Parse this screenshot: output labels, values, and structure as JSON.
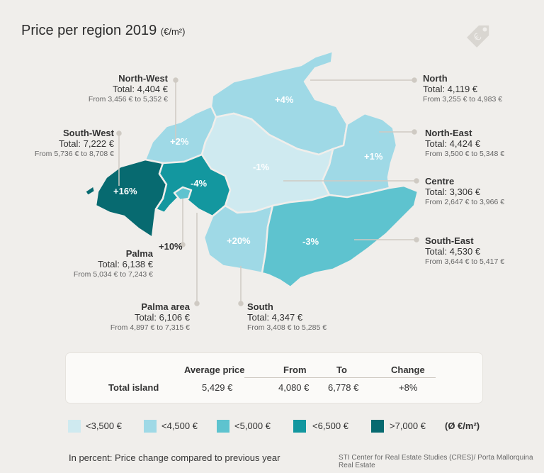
{
  "title": "Price per region 2019",
  "title_unit": "(€/m²)",
  "colors": {
    "c1": "#cfeaf0",
    "c2": "#9fd9e6",
    "c3": "#5ec3cf",
    "c4": "#13979f",
    "c5": "#076a70",
    "bg": "#f0eeeb"
  },
  "regions": {
    "north_west": {
      "name": "North-West",
      "total": "Total: 4,404 €",
      "range": "From 3,456 € to 5,352 €",
      "change": "+2%"
    },
    "north": {
      "name": "North",
      "total": "Total: 4,119 €",
      "range": "From 3,255 € to 4,983 €",
      "change": "+4%"
    },
    "south_west": {
      "name": "South-West",
      "total": "Total: 7,222 €",
      "range": "From 5,736 € to 8,708 €",
      "change": "+16%"
    },
    "north_east": {
      "name": "North-East",
      "total": "Total: 4,424 €",
      "range": "From 3,500 € to 5,348 €",
      "change": "+1%"
    },
    "centre": {
      "name": "Centre",
      "total": "Total: 3,306 €",
      "range": "From 2,647 € to 3,966 €",
      "change": "-1%"
    },
    "palma_area": {
      "name": "Palma area",
      "total": "Total: 6,106 €",
      "range": "From 4,897 € to 7,315 €",
      "change": "-4%"
    },
    "palma": {
      "name": "Palma",
      "total": "Total: 6,138 €",
      "range": "From 5,034 € to 7,243 €",
      "change": "+10%"
    },
    "south_east": {
      "name": "South-East",
      "total": "Total: 4,530 €",
      "range": "From 3,644 € to 5,417 €",
      "change": "-3%"
    },
    "south": {
      "name": "South",
      "total": "Total: 4,347 €",
      "range": "From 3,408 € to 5,285 €",
      "change": "+20%"
    }
  },
  "table": {
    "headers": [
      "Average price",
      "From",
      "To",
      "Change"
    ],
    "row_label": "Total island",
    "values": [
      "5,429 €",
      "4,080 €",
      "6,778 €",
      "+8%"
    ]
  },
  "legend": {
    "items": [
      "<3,500 €",
      "<4,500 €",
      "<5,000 €",
      "<6,500  €",
      ">7,000  €"
    ],
    "unit": "(Ø €/m²)"
  },
  "footnote": "In percent: Price change compared to previous year",
  "source": "STI Center for Real Estate Studies (CRES)/ Porta Mallorquina Real Estate",
  "icons": {
    "tag": "euro-price-tag-icon"
  }
}
